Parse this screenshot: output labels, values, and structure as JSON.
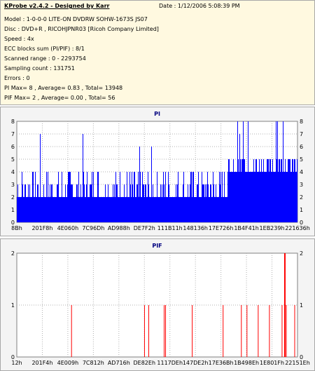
{
  "info": {
    "title": "KProbe v2.4.2 - Designed by Karr",
    "date": "Date : 1/12/2006 5:08:39 PM",
    "lines": [
      "Model : 1-0-0-0 LITE-ON DVDRW SOHW-1673S JS07",
      "Disc : DVD+R , RICOHJPNR03 [Ricoh Company Limited]",
      "Speed : 4x",
      "ECC blocks sum (PI/PIF) : 8/1",
      "Scanned range : 0 - 2293754",
      "Sampling count : 131751",
      "Errors : 0",
      "PI Max= 8 , Average= 0.83 , Total= 13948",
      "PIF Max= 2 , Average= 0.00 , Total= 56"
    ]
  },
  "chart_data": [
    {
      "type": "bar",
      "title": "PI",
      "ylim": [
        0,
        8
      ],
      "yticks": [
        "0",
        "1",
        "2",
        "3",
        "4",
        "5",
        "6",
        "7",
        "8"
      ],
      "xtick_labels": [
        "8Bh",
        "201F8h",
        "4E060h",
        "7C96Dh",
        "AD988h",
        "DE7F2h",
        "111B11h",
        "148136h",
        "17E726h",
        "1B4F41h",
        "1EB239h",
        "221636h"
      ],
      "bar_color": "#0000ff",
      "grid": true,
      "approx_series": {
        "name": "",
        "description_free": true,
        "segments": [
          {
            "from": 0.0,
            "to": 0.75,
            "base": 2,
            "spike": 4,
            "max_spike": 7
          },
          {
            "from": 0.75,
            "to": 1.0,
            "base": 4,
            "spike": 5,
            "max_spike": 8
          }
        ]
      }
    },
    {
      "type": "bar",
      "title": "PIF",
      "ylim": [
        0,
        2
      ],
      "yticks": [
        "0",
        "1",
        "2"
      ],
      "xtick_labels": [
        "12h",
        "201F4h",
        "4E009h",
        "7C812h",
        "AD716h",
        "DE82Eh",
        "1117DEh",
        "147DE2h",
        "17E36Bh",
        "1B498Eh",
        "1E801Fh",
        "22151Eh"
      ],
      "bar_color": "#ff0000",
      "grid": true,
      "spikes": [
        {
          "x": 0.195,
          "value": 1
        },
        {
          "x": 0.455,
          "value": 1
        },
        {
          "x": 0.47,
          "value": 1
        },
        {
          "x": 0.525,
          "value": 1
        },
        {
          "x": 0.53,
          "value": 1
        },
        {
          "x": 0.625,
          "value": 1
        },
        {
          "x": 0.735,
          "value": 1
        },
        {
          "x": 0.8,
          "value": 1
        },
        {
          "x": 0.82,
          "value": 1
        },
        {
          "x": 0.86,
          "value": 1
        },
        {
          "x": 0.9,
          "value": 1
        },
        {
          "x": 0.945,
          "value": 1
        },
        {
          "x": 0.955,
          "value": 2
        },
        {
          "x": 0.96,
          "value": 1
        },
        {
          "x": 0.99,
          "value": 1
        }
      ]
    }
  ]
}
